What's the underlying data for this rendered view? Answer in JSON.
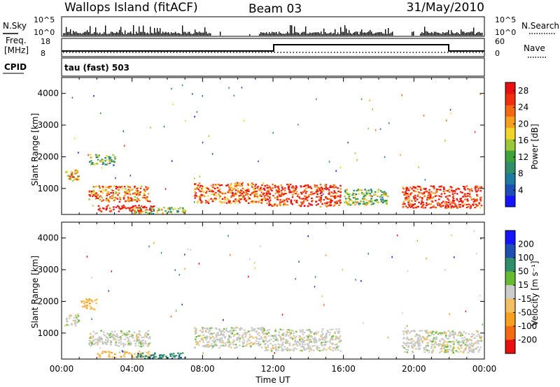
{
  "header": {
    "station": "Wallops Island (fitACF)",
    "beam": "Beam 03",
    "date": "31/May/2010"
  },
  "strip": {
    "nsky_label": "N.Sky",
    "nsky_ticks": [
      "10^5",
      "10^0"
    ],
    "nsearch_label": "N.Search",
    "nsearch_ticks": [
      "10^5",
      "10^0"
    ],
    "freq_label": "Freq.",
    "freq_unit": "[MHz]",
    "freq_ticks": [
      "18",
      "8"
    ],
    "nave_label": "Nave",
    "nave_ticks": [
      "60",
      "0"
    ],
    "cpid_label": "CPID",
    "cpid_text": "tau (fast) 503"
  },
  "colors": {
    "power_scale": [
      "#1414ff",
      "#1e50b4",
      "#1f7aa0",
      "#2e8f6a",
      "#3fa33c",
      "#9cc838",
      "#f2d52a",
      "#f6a020",
      "#f36a12",
      "#ee3010",
      "#e81010"
    ],
    "velocity_scale": [
      "#1414ff",
      "#1e50b4",
      "#2e8f6a",
      "#66bb33",
      "#cccccc",
      "#f2c060",
      "#f6a020",
      "#f36a12",
      "#e81010"
    ],
    "gray": "#c8c8c4"
  },
  "chart_data": [
    {
      "type": "heatmap",
      "name": "power",
      "xlabel": "Time UT",
      "ylabel": "Slant Range [km]",
      "x_ticks": [
        "00:00",
        "04:00",
        "08:00",
        "12:00",
        "16:00",
        "20:00",
        "00:00"
      ],
      "xlim_hours": [
        0,
        24
      ],
      "y_ticks": [
        1000,
        2000,
        3000,
        4000
      ],
      "ylim": [
        180,
        4500
      ],
      "colorbar_label": "Power [dB]",
      "colorbar_ticks": [
        "4",
        "8",
        "12",
        "16",
        "20",
        "24",
        "28"
      ],
      "clim": [
        0,
        30
      ],
      "echo_regions": [
        {
          "t0": 0.2,
          "t1": 1.0,
          "r0": 1250,
          "r1": 1650,
          "level": 0.6
        },
        {
          "t0": 1.5,
          "t1": 3.0,
          "r0": 1750,
          "r1": 2100,
          "level": 0.35
        },
        {
          "t0": 1.5,
          "t1": 5.0,
          "r0": 600,
          "r1": 1100,
          "level": 0.7
        },
        {
          "t0": 2.0,
          "t1": 5.2,
          "r0": 280,
          "r1": 500,
          "level": 0.95
        },
        {
          "t0": 4.0,
          "t1": 7.0,
          "r0": 220,
          "r1": 420,
          "level": 0.45
        },
        {
          "t0": 7.5,
          "t1": 11.5,
          "r0": 550,
          "r1": 1200,
          "level": 0.75
        },
        {
          "t0": 11.5,
          "t1": 15.8,
          "r0": 450,
          "r1": 1150,
          "level": 0.85
        },
        {
          "t0": 16.0,
          "t1": 18.5,
          "r0": 500,
          "r1": 1000,
          "level": 0.45
        },
        {
          "t0": 19.3,
          "t1": 23.8,
          "r0": 400,
          "r1": 1100,
          "level": 0.85
        }
      ]
    },
    {
      "type": "heatmap",
      "name": "velocity",
      "xlabel": "Time UT",
      "ylabel": "Slant Range [km]",
      "x_ticks": [
        "00:00",
        "04:00",
        "08:00",
        "12:00",
        "16:00",
        "20:00",
        "00:00"
      ],
      "xlim_hours": [
        0,
        24
      ],
      "y_ticks": [
        1000,
        2000,
        3000,
        4000
      ],
      "ylim": [
        180,
        4500
      ],
      "colorbar_label": "Velocity [m s⁻¹]",
      "colorbar_ticks": [
        "200",
        "100",
        "50",
        "15",
        "-15",
        "-50",
        "-100",
        "-200"
      ],
      "clim": [
        -250,
        250
      ],
      "echo_regions": [
        {
          "t0": 0.2,
          "t1": 1.0,
          "r0": 1250,
          "r1": 1650,
          "v": 0
        },
        {
          "t0": 1.0,
          "t1": 2.0,
          "r0": 1750,
          "r1": 2100,
          "v": -40
        },
        {
          "t0": 1.5,
          "t1": 5.0,
          "r0": 600,
          "r1": 1100,
          "v": 0
        },
        {
          "t0": 2.0,
          "t1": 5.2,
          "r0": 250,
          "r1": 450,
          "v": -40
        },
        {
          "t0": 4.2,
          "t1": 7.0,
          "r0": 220,
          "r1": 400,
          "v": 60
        },
        {
          "t0": 7.5,
          "t1": 11.5,
          "r0": 550,
          "r1": 1200,
          "v": 0
        },
        {
          "t0": 11.5,
          "t1": 15.8,
          "r0": 450,
          "r1": 1150,
          "v": 0
        },
        {
          "t0": 19.3,
          "t1": 23.8,
          "r0": 400,
          "r1": 1100,
          "v": 0
        }
      ]
    }
  ]
}
